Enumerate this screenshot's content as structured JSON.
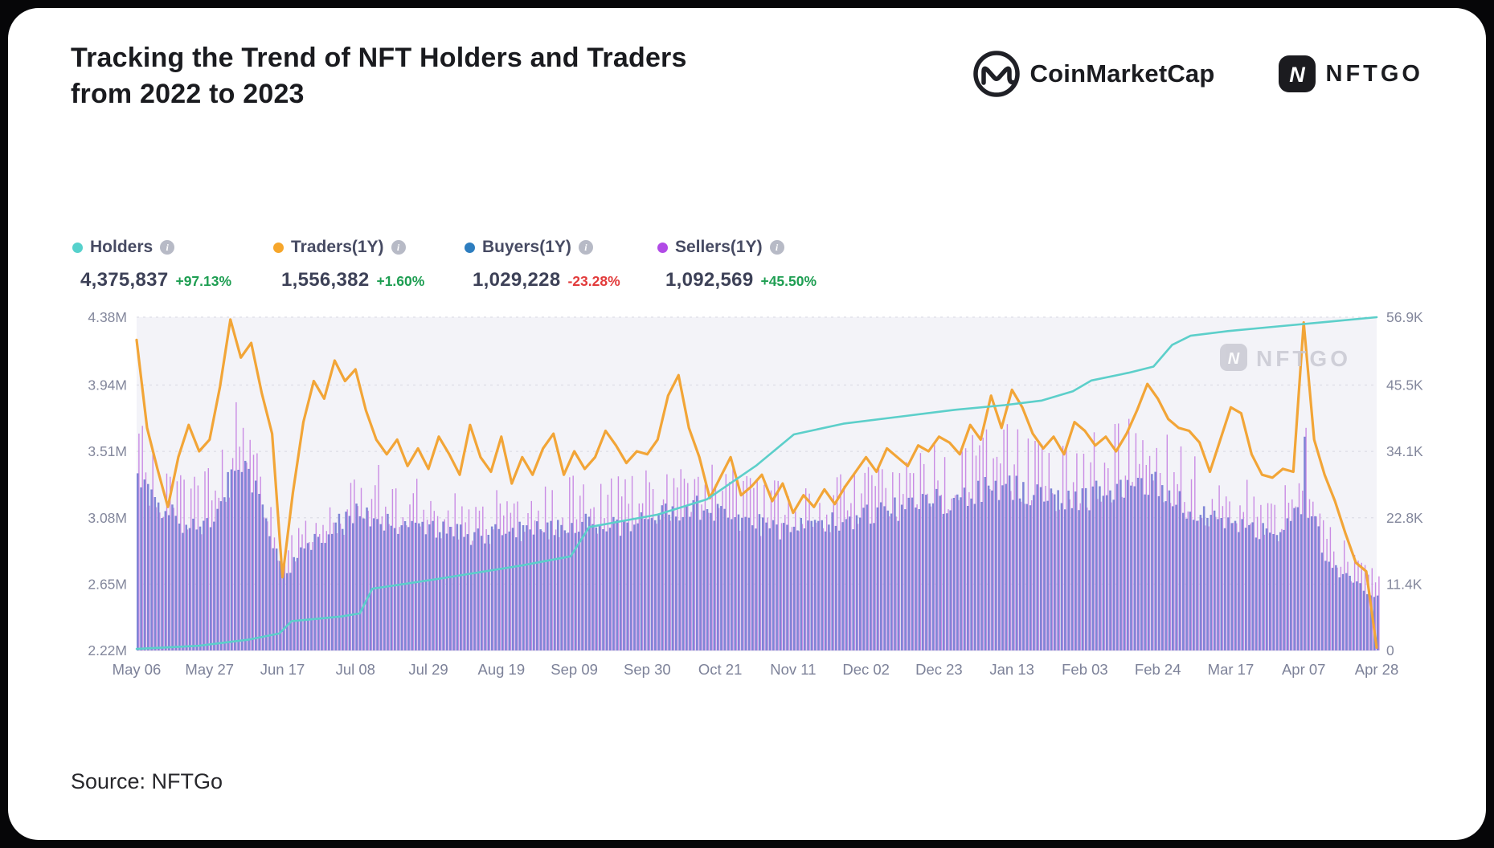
{
  "page": {
    "title_line1": "Tracking the Trend of NFT Holders and Traders",
    "title_line2": "from 2022 to 2023",
    "source": "Source: NFTGo",
    "watermark": "NFTGO"
  },
  "brands": {
    "coinmarketcap": "CoinMarketCap",
    "nftgo": "NFTGO",
    "nftgo_icon_letter": "N"
  },
  "legend": {
    "items": [
      {
        "label": "Holders",
        "value": "4,375,837",
        "change": "+97.13%",
        "direction": "up",
        "color": "#56d1cc"
      },
      {
        "label": "Traders(1Y)",
        "value": "1,556,382",
        "change": "+1.60%",
        "direction": "up",
        "color": "#f6a62b"
      },
      {
        "label": "Buyers(1Y)",
        "value": "1,029,228",
        "change": "-23.28%",
        "direction": "down",
        "color": "#2d7dbf"
      },
      {
        "label": "Sellers(1Y)",
        "value": "1,092,569",
        "change": "+45.50%",
        "direction": "up",
        "color": "#b14be6"
      }
    ]
  },
  "chart_data": {
    "type": "mixed",
    "plot_bg": "#f3f3f8",
    "grid_color": "#dddde6",
    "legend_position": "top-left",
    "x_ticks": [
      "May 06",
      "May 27",
      "Jun 17",
      "Jul 08",
      "Jul 29",
      "Aug 19",
      "Sep 09",
      "Sep 30",
      "Oct 21",
      "Nov 11",
      "Dec 02",
      "Dec 23",
      "Jan 13",
      "Feb 03",
      "Feb 24",
      "Mar 17",
      "Apr 07",
      "Apr 28"
    ],
    "days": 357,
    "left_axis": {
      "title": "Holders (cumulative)",
      "ticks": [
        "4.38M",
        "3.94M",
        "3.51M",
        "3.08M",
        "2.65M",
        "2.22M"
      ],
      "values": [
        4.38,
        3.94,
        3.51,
        3.08,
        2.65,
        2.22
      ],
      "min": 2.22,
      "max": 4.38,
      "unit": "M"
    },
    "right_axis": {
      "title": "Daily traders / buyers / sellers",
      "ticks": [
        "56.9K",
        "45.5K",
        "34.1K",
        "22.8K",
        "11.4K",
        "0"
      ],
      "values": [
        56.9,
        45.5,
        34.1,
        22.8,
        11.4,
        0
      ],
      "min": 0,
      "max": 56.9,
      "unit": "K"
    },
    "series": [
      {
        "name": "Holders",
        "type": "line",
        "axis": "left",
        "color": "#5ccfca",
        "width": 2.6,
        "anchors_t_value_M": [
          [
            0,
            2.23
          ],
          [
            0.05,
            2.25
          ],
          [
            0.09,
            2.29
          ],
          [
            0.115,
            2.33
          ],
          [
            0.125,
            2.41
          ],
          [
            0.165,
            2.44
          ],
          [
            0.18,
            2.46
          ],
          [
            0.19,
            2.62
          ],
          [
            0.24,
            2.68
          ],
          [
            0.31,
            2.77
          ],
          [
            0.35,
            2.83
          ],
          [
            0.365,
            3.02
          ],
          [
            0.42,
            3.1
          ],
          [
            0.46,
            3.2
          ],
          [
            0.5,
            3.42
          ],
          [
            0.53,
            3.62
          ],
          [
            0.57,
            3.69
          ],
          [
            0.62,
            3.74
          ],
          [
            0.66,
            3.78
          ],
          [
            0.7,
            3.81
          ],
          [
            0.73,
            3.84
          ],
          [
            0.755,
            3.9
          ],
          [
            0.77,
            3.97
          ],
          [
            0.8,
            4.02
          ],
          [
            0.82,
            4.06
          ],
          [
            0.835,
            4.2
          ],
          [
            0.85,
            4.26
          ],
          [
            0.88,
            4.29
          ],
          [
            0.92,
            4.32
          ],
          [
            0.96,
            4.35
          ],
          [
            1,
            4.38
          ]
        ]
      },
      {
        "name": "Traders",
        "type": "line",
        "axis": "right",
        "color": "#f2a537",
        "width": 3.2,
        "values_k": [
          53,
          38,
          31,
          24.5,
          33,
          38.5,
          34,
          36,
          45,
          56.5,
          50,
          52.5,
          44,
          37,
          12.5,
          27,
          39,
          46,
          43,
          49.5,
          46,
          48,
          41,
          36,
          33.5,
          36,
          31.5,
          34.5,
          31,
          36.5,
          33.5,
          30,
          38.5,
          33,
          30.5,
          36.5,
          28.5,
          33,
          30,
          34.5,
          37,
          30,
          34,
          31,
          33,
          37.5,
          35,
          32,
          34,
          33.5,
          36,
          43.5,
          47,
          38,
          33,
          26,
          29.5,
          33,
          26.5,
          28,
          30,
          25.5,
          28.5,
          23.5,
          26.5,
          24.5,
          27.5,
          25,
          28,
          30.5,
          33,
          30.5,
          34.5,
          33,
          31.5,
          35,
          34,
          36.5,
          35.5,
          33.5,
          38.5,
          36,
          43.5,
          38,
          44.5,
          41.5,
          37,
          34.5,
          36.5,
          33.5,
          39,
          37.5,
          35,
          36.5,
          34,
          37,
          41,
          45.5,
          43,
          39.5,
          38,
          37.5,
          35.5,
          30.5,
          36,
          41.5,
          40.5,
          33.5,
          30,
          29.5,
          31,
          30.5,
          56,
          36,
          30,
          25.5,
          20,
          15,
          13.5,
          0.5
        ]
      },
      {
        "name": "Buyers",
        "type": "bar",
        "axis": "right",
        "color": "#7f85d6",
        "jitter": 0.09,
        "weekly_k": [
          30,
          24,
          21.5,
          22.5,
          32,
          27,
          13,
          18,
          21,
          23.5,
          22.5,
          21.5,
          20.5,
          20,
          19.5,
          20,
          20.5,
          21,
          21.5,
          22,
          21,
          22.5,
          23.5,
          24.5,
          23,
          22,
          21,
          20.5,
          21.5,
          22,
          23,
          24,
          25,
          25.5,
          26,
          27.5,
          28,
          26.5,
          25.5,
          26,
          27.5,
          29.5,
          28,
          25,
          23,
          22,
          21,
          20,
          26,
          15,
          11.5,
          9.5
        ]
      },
      {
        "name": "Sellers",
        "type": "bar",
        "axis": "right",
        "color": "#ca8ce4",
        "jitter": 0.22,
        "weekly_k": [
          33,
          27,
          24,
          26,
          35,
          30,
          15,
          20,
          24,
          27,
          26,
          25,
          23.5,
          23,
          22.5,
          23,
          23.5,
          24,
          25,
          25.5,
          24,
          26,
          27,
          28.5,
          26.5,
          25,
          24,
          23.5,
          25,
          25.5,
          26.5,
          27.5,
          29,
          29.5,
          30,
          32,
          32.5,
          30.5,
          29.5,
          30,
          32,
          34,
          32.5,
          29,
          26.5,
          25.5,
          24,
          23,
          30,
          18.5,
          13.5,
          11
        ]
      }
    ],
    "overrides": [
      {
        "day": 336,
        "buyers": 36.5,
        "sellers": 38
      }
    ]
  }
}
